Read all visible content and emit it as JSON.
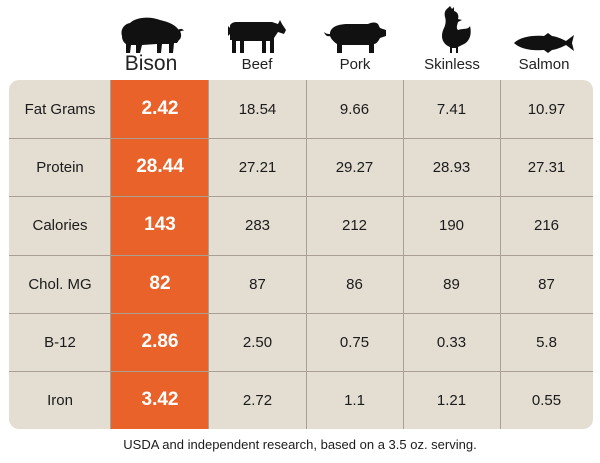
{
  "chart_data": {
    "type": "table",
    "columns": [
      "Bison",
      "Beef",
      "Pork",
      "Skinless",
      "Salmon"
    ],
    "featured_column": "Bison",
    "column_icons": [
      "bison-icon",
      "cow-icon",
      "pig-icon",
      "chicken-icon",
      "fish-icon"
    ],
    "rows": [
      {
        "label": "Fat Grams",
        "values": [
          "2.42",
          "18.54",
          "9.66",
          "7.41",
          "10.97"
        ]
      },
      {
        "label": "Protein",
        "values": [
          "28.44",
          "27.21",
          "29.27",
          "28.93",
          "27.31"
        ]
      },
      {
        "label": "Calories",
        "values": [
          "143",
          "283",
          "212",
          "190",
          "216"
        ]
      },
      {
        "label": "Chol. MG",
        "values": [
          "82",
          "87",
          "86",
          "89",
          "87"
        ]
      },
      {
        "label": "B-12",
        "values": [
          "2.86",
          "2.50",
          "0.75",
          "0.33",
          "5.8"
        ]
      },
      {
        "label": "Iron",
        "values": [
          "3.42",
          "2.72",
          "1.1",
          "1.21",
          "0.55"
        ]
      }
    ],
    "footnote": "USDA and independent research, based on a 3.5 oz. serving."
  },
  "colors": {
    "table_background": "#e4ddd2",
    "featured_column": "#e9622a",
    "grid_lines": "#a99f94",
    "icon": "#111111"
  }
}
